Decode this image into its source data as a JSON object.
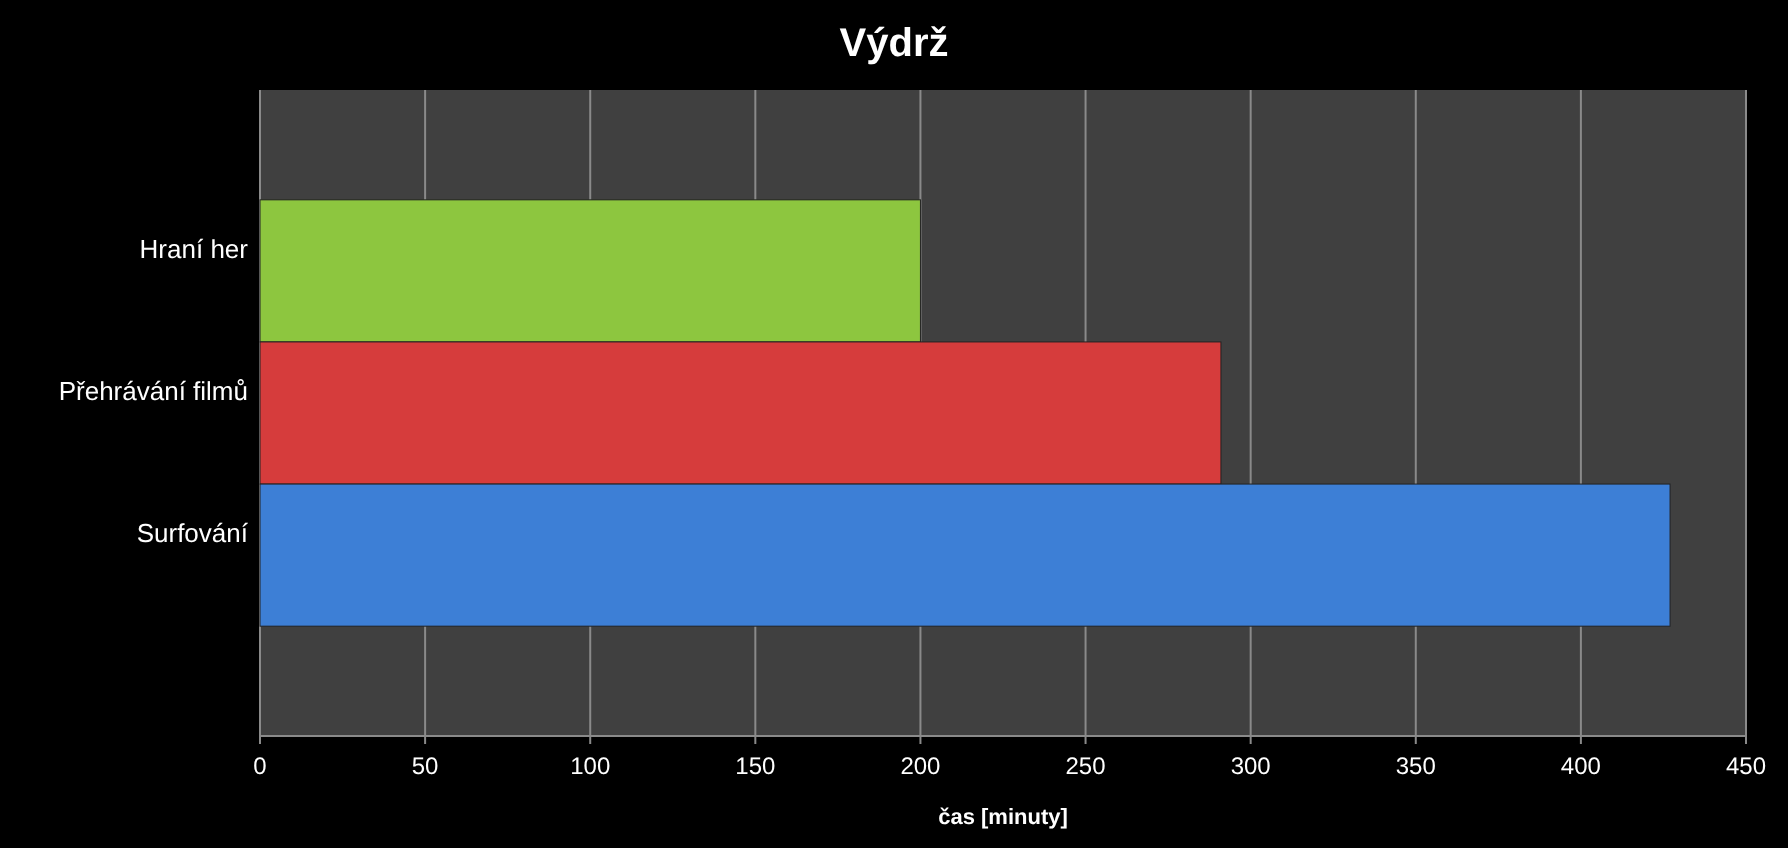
{
  "chart_data": {
    "type": "bar",
    "orientation": "horizontal",
    "title": "Výdrž",
    "xlabel": "čas [minuty]",
    "categories": [
      "Hraní her",
      "Přehrávání filmů",
      "Surfování"
    ],
    "values": [
      200,
      291,
      427
    ],
    "colors": [
      "#8dc63f",
      "#d63c3c",
      "#3d7fd6"
    ],
    "xlim": [
      0,
      450
    ],
    "xticks": [
      0,
      50,
      100,
      150,
      200,
      250,
      300,
      350,
      400,
      450
    ],
    "grid": "x"
  }
}
